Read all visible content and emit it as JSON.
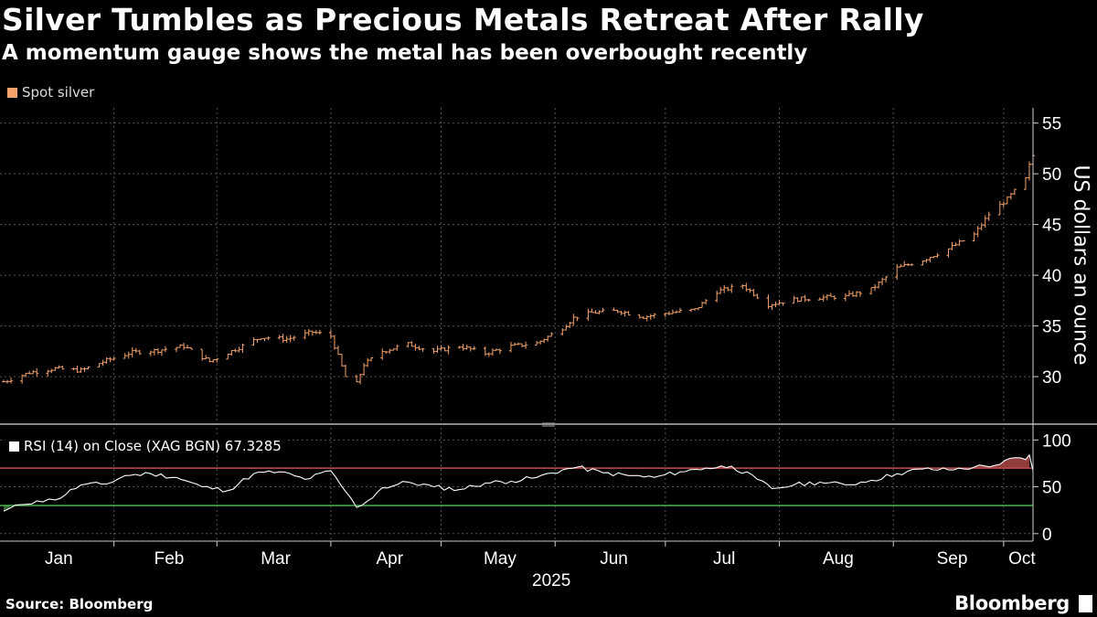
{
  "title": "Silver Tumbles as Precious Metals Retreat After Rally",
  "subtitle": "A momentum gauge shows the metal has been overbought recently",
  "source": "Source: Bloomberg",
  "brand": "Bloomberg",
  "colors": {
    "price": "#f5a36a",
    "rsi": "#ffffff",
    "overbought": "#c0504d",
    "oversold": "#4caf50",
    "grid": "#555555"
  },
  "chart_data": [
    {
      "type": "ohlc",
      "legend": "Spot silver",
      "ylabel": "US dollars an ounce",
      "ylim": [
        25.5,
        56.5
      ],
      "yticks": [
        30,
        35,
        40,
        45,
        50,
        55
      ],
      "x_range": [
        "2024-12-31",
        "2025-10-08"
      ],
      "series": [
        {
          "name": "Spot silver",
          "dates": [
            "2025-01-01",
            "2025-01-08",
            "2025-01-15",
            "2025-01-22",
            "2025-01-29",
            "2025-02-05",
            "2025-02-12",
            "2025-02-19",
            "2025-02-26",
            "2025-03-05",
            "2025-03-12",
            "2025-03-19",
            "2025-03-26",
            "2025-03-31",
            "2025-04-04",
            "2025-04-07",
            "2025-04-09",
            "2025-04-14",
            "2025-04-21",
            "2025-04-28",
            "2025-05-05",
            "2025-05-12",
            "2025-05-19",
            "2025-05-26",
            "2025-06-02",
            "2025-06-05",
            "2025-06-10",
            "2025-06-17",
            "2025-06-24",
            "2025-07-01",
            "2025-07-08",
            "2025-07-14",
            "2025-07-21",
            "2025-07-28",
            "2025-08-04",
            "2025-08-11",
            "2025-08-18",
            "2025-08-25",
            "2025-09-01",
            "2025-09-08",
            "2025-09-15",
            "2025-09-22",
            "2025-09-26",
            "2025-10-01",
            "2025-10-03",
            "2025-10-06",
            "2025-10-07",
            "2025-10-08"
          ],
          "close": [
            29.5,
            30.4,
            30.8,
            30.6,
            31.6,
            32.4,
            32.6,
            33.0,
            31.5,
            32.7,
            33.9,
            33.7,
            34.4,
            34.0,
            30.0,
            29.3,
            31.2,
            32.5,
            33.2,
            32.5,
            33.0,
            32.3,
            33.0,
            33.3,
            34.8,
            35.8,
            36.3,
            36.5,
            35.9,
            36.3,
            36.6,
            38.4,
            39.0,
            37.1,
            37.6,
            37.8,
            37.9,
            38.6,
            40.7,
            41.5,
            42.6,
            44.0,
            46.0,
            47.5,
            48.3,
            49.5,
            50.8,
            51.8
          ]
        }
      ]
    },
    {
      "type": "line",
      "legend": "RSI (14)  on Close (XAG BGN) 67.3285",
      "ylim": [
        -8,
        113
      ],
      "yticks": [
        0,
        50,
        100
      ],
      "thresholds": [
        70,
        30
      ],
      "x_range": [
        "2024-12-31",
        "2025-10-08"
      ],
      "series": [
        {
          "name": "RSI (14)  on Close (XAG BGN) 67.3285",
          "dates": [
            "2025-01-01",
            "2025-01-06",
            "2025-01-10",
            "2025-01-15",
            "2025-01-22",
            "2025-01-29",
            "2025-02-03",
            "2025-02-10",
            "2025-02-17",
            "2025-02-24",
            "2025-03-03",
            "2025-03-10",
            "2025-03-17",
            "2025-03-24",
            "2025-03-31",
            "2025-04-04",
            "2025-04-07",
            "2025-04-10",
            "2025-04-14",
            "2025-04-21",
            "2025-04-28",
            "2025-05-05",
            "2025-05-12",
            "2025-05-19",
            "2025-05-26",
            "2025-06-02",
            "2025-06-06",
            "2025-06-13",
            "2025-06-20",
            "2025-06-27",
            "2025-07-04",
            "2025-07-11",
            "2025-07-18",
            "2025-07-25",
            "2025-07-29",
            "2025-08-04",
            "2025-08-11",
            "2025-08-18",
            "2025-08-25",
            "2025-09-01",
            "2025-09-08",
            "2025-09-15",
            "2025-09-22",
            "2025-09-29",
            "2025-10-03",
            "2025-10-06",
            "2025-10-07",
            "2025-10-08"
          ],
          "values": [
            24,
            31,
            35,
            36,
            52,
            53,
            62,
            64,
            60,
            50,
            46,
            64,
            66,
            58,
            67,
            45,
            28,
            35,
            49,
            55,
            50,
            47,
            54,
            56,
            60,
            68,
            71,
            65,
            62,
            60,
            66,
            70,
            72,
            58,
            48,
            52,
            55,
            52,
            57,
            64,
            69,
            68,
            71,
            74,
            81,
            79,
            84,
            67.3285
          ]
        }
      ]
    }
  ],
  "x_axis": {
    "months": [
      {
        "label": "Jan",
        "date": "2025-01-16"
      },
      {
        "label": "Feb",
        "date": "2025-02-15"
      },
      {
        "label": "Mar",
        "date": "2025-03-16"
      },
      {
        "label": "Apr",
        "date": "2025-04-16"
      },
      {
        "label": "May",
        "date": "2025-05-16"
      },
      {
        "label": "Jun",
        "date": "2025-06-16"
      },
      {
        "label": "Jul",
        "date": "2025-07-16"
      },
      {
        "label": "Aug",
        "date": "2025-08-16"
      },
      {
        "label": "Sep",
        "date": "2025-09-16"
      },
      {
        "label": "Oct",
        "date": "2025-10-05"
      }
    ],
    "gridlines": [
      "2025-01-31",
      "2025-02-28",
      "2025-03-31",
      "2025-04-30",
      "2025-05-31",
      "2025-06-30",
      "2025-07-31",
      "2025-08-31",
      "2025-09-30"
    ],
    "year_label": "2025"
  }
}
